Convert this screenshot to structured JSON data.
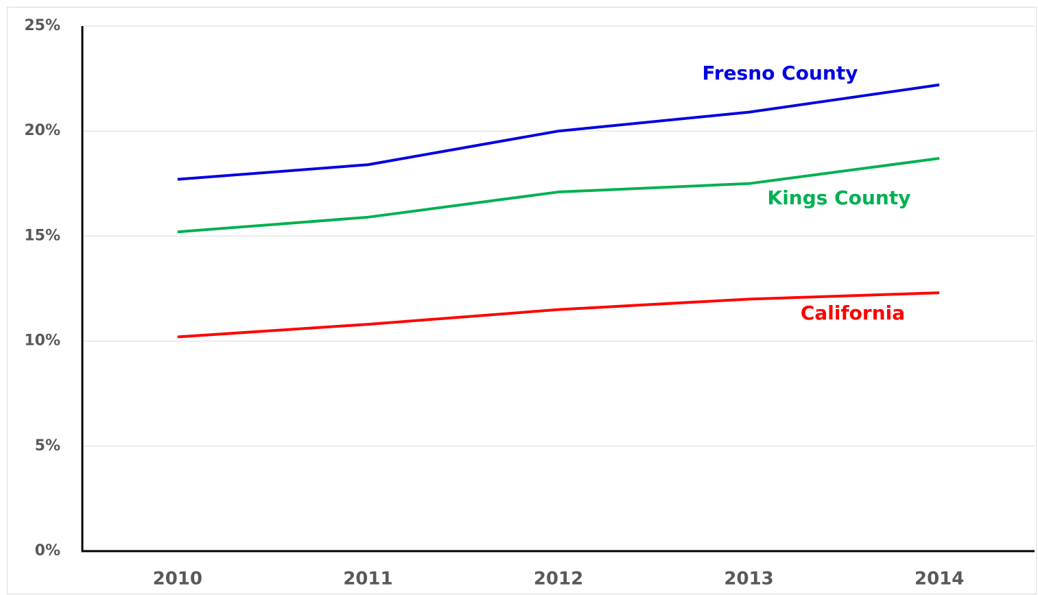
{
  "chart_data": {
    "type": "line",
    "categories": [
      "2010",
      "2011",
      "2012",
      "2013",
      "2014"
    ],
    "series": [
      {
        "name": "Fresno County",
        "color": "#0000e0",
        "values": [
          17.7,
          18.4,
          20.0,
          20.9,
          22.2
        ]
      },
      {
        "name": "Kings County",
        "color": "#00b050",
        "values": [
          15.2,
          15.9,
          17.1,
          17.5,
          18.7
        ]
      },
      {
        "name": "California",
        "color": "#ff0000",
        "values": [
          10.2,
          10.8,
          11.5,
          12.0,
          12.3
        ]
      }
    ],
    "ylim": [
      0,
      25
    ],
    "yticks": [
      {
        "value": 0,
        "label": "0%"
      },
      {
        "value": 5,
        "label": "5%"
      },
      {
        "value": 10,
        "label": "10%"
      },
      {
        "value": 15,
        "label": "15%"
      },
      {
        "value": 20,
        "label": "20%"
      },
      {
        "value": 25,
        "label": "25%"
      }
    ],
    "grid": true
  }
}
